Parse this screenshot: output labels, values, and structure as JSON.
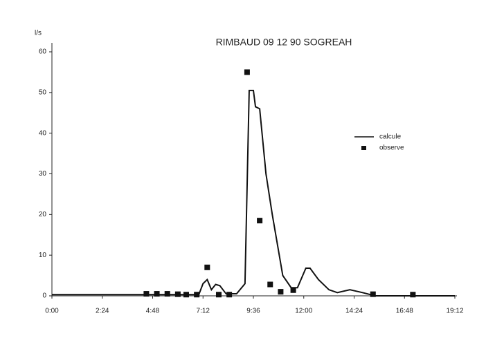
{
  "chart_data": {
    "type": "line",
    "title": "RIMBAUD 09 12 90 SOGREAH",
    "ylabel": "l/s",
    "xlim": [
      0,
      19.2
    ],
    "xticks": [
      {
        "value": 0,
        "label": "0:00"
      },
      {
        "value": 2.4,
        "label": "2:24"
      },
      {
        "value": 4.8,
        "label": "4:48"
      },
      {
        "value": 7.2,
        "label": "7:12"
      },
      {
        "value": 9.6,
        "label": "9:36"
      },
      {
        "value": 12,
        "label": "12:00"
      },
      {
        "value": 14.4,
        "label": "14:24"
      },
      {
        "value": 16.8,
        "label": "16:48"
      },
      {
        "value": 19.2,
        "label": "19:12"
      }
    ],
    "ylim": [
      0,
      60
    ],
    "yticks": [
      0,
      10,
      20,
      30,
      40,
      50,
      60
    ],
    "series": [
      {
        "name": "calcule",
        "color": "#111111",
        "style": "line",
        "x": [
          0,
          7.0,
          7.2,
          7.4,
          7.6,
          7.8,
          8.0,
          8.3,
          8.8,
          9.2,
          9.4,
          9.6,
          9.7,
          9.9,
          10.2,
          10.5,
          11.0,
          11.4,
          11.7,
          12.1,
          12.3,
          12.7,
          13.2,
          13.6,
          14.2,
          14.8,
          15.4,
          19.2
        ],
        "values": [
          0.3,
          0.3,
          3,
          4,
          1.5,
          2.8,
          2.5,
          0.5,
          0.5,
          3,
          50.5,
          50.5,
          46.5,
          46,
          30,
          20,
          5,
          2,
          2,
          6.8,
          6.8,
          4,
          1.5,
          0.8,
          1.5,
          0.8,
          0,
          0
        ]
      },
      {
        "name": "observe",
        "color": "#111111",
        "style": "markers",
        "x": [
          4.5,
          5.0,
          5.5,
          6.0,
          6.4,
          6.9,
          7.4,
          7.95,
          8.45,
          9.3,
          9.9,
          10.4,
          10.9,
          11.5,
          15.3,
          17.2
        ],
        "values": [
          0.5,
          0.5,
          0.5,
          0.4,
          0.3,
          0.3,
          7,
          0.3,
          0.3,
          55,
          18.5,
          2.8,
          1,
          1.4,
          0.4,
          0.3
        ]
      }
    ]
  }
}
